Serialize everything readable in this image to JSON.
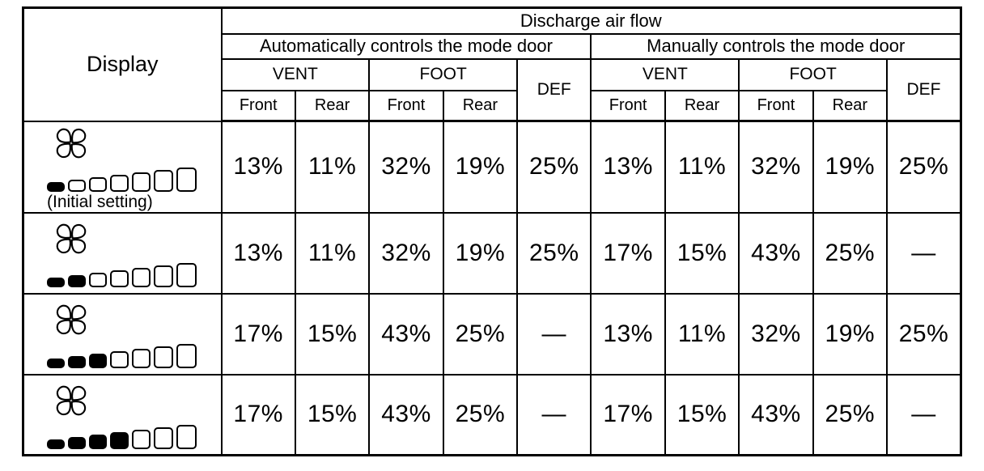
{
  "header": {
    "display_label": "Display",
    "discharge_label": "Discharge air flow",
    "auto_label": "Automatically controls the mode door",
    "manual_label": "Manually controls the mode door",
    "vent_label": "VENT",
    "foot_label": "FOOT",
    "def_label": "DEF",
    "front_label": "Front",
    "rear_label": "Rear"
  },
  "icons": {
    "fan": "fan-icon",
    "speed_bar": "fan-speed-bars"
  },
  "rows": [
    {
      "display": {
        "segments_filled": 1,
        "segments_total": 7,
        "caption": "(Initial setting)"
      },
      "auto": {
        "vent_front": "13%",
        "vent_rear": "11%",
        "foot_front": "32%",
        "foot_rear": "19%",
        "def": "25%"
      },
      "manual": {
        "vent_front": "13%",
        "vent_rear": "11%",
        "foot_front": "32%",
        "foot_rear": "19%",
        "def": "25%"
      }
    },
    {
      "display": {
        "segments_filled": 2,
        "segments_total": 7
      },
      "auto": {
        "vent_front": "13%",
        "vent_rear": "11%",
        "foot_front": "32%",
        "foot_rear": "19%",
        "def": "25%"
      },
      "manual": {
        "vent_front": "17%",
        "vent_rear": "15%",
        "foot_front": "43%",
        "foot_rear": "25%",
        "def": "—"
      }
    },
    {
      "display": {
        "segments_filled": 3,
        "segments_total": 7
      },
      "auto": {
        "vent_front": "17%",
        "vent_rear": "15%",
        "foot_front": "43%",
        "foot_rear": "25%",
        "def": "—"
      },
      "manual": {
        "vent_front": "13%",
        "vent_rear": "11%",
        "foot_front": "32%",
        "foot_rear": "19%",
        "def": "25%"
      }
    },
    {
      "display": {
        "segments_filled": 4,
        "segments_total": 7
      },
      "auto": {
        "vent_front": "17%",
        "vent_rear": "15%",
        "foot_front": "43%",
        "foot_rear": "25%",
        "def": "—"
      },
      "manual": {
        "vent_front": "17%",
        "vent_rear": "15%",
        "foot_front": "43%",
        "foot_rear": "25%",
        "def": "—"
      }
    }
  ]
}
